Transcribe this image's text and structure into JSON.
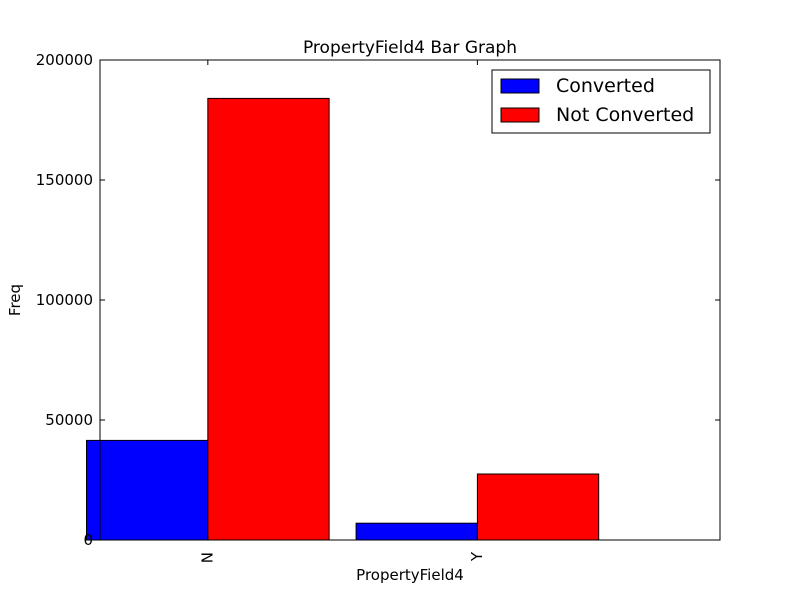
{
  "chart_data": {
    "type": "bar",
    "title": "PropertyField4 Bar Graph",
    "xlabel": "PropertyField4",
    "ylabel": "Freq",
    "categories": [
      "N",
      "Y"
    ],
    "ylim": [
      0,
      200000
    ],
    "yticks": [
      0,
      50000,
      100000,
      150000,
      200000
    ],
    "ytick_labels": [
      "0",
      "50000",
      "100000",
      "150000",
      "200000"
    ],
    "grid": false,
    "legend_position": "top-right",
    "series": [
      {
        "name": "Converted",
        "color": "#0000ff",
        "values": [
          41500,
          7000
        ]
      },
      {
        "name": "Not Converted",
        "color": "#ff0000",
        "values": [
          184000,
          27500
        ]
      }
    ]
  }
}
